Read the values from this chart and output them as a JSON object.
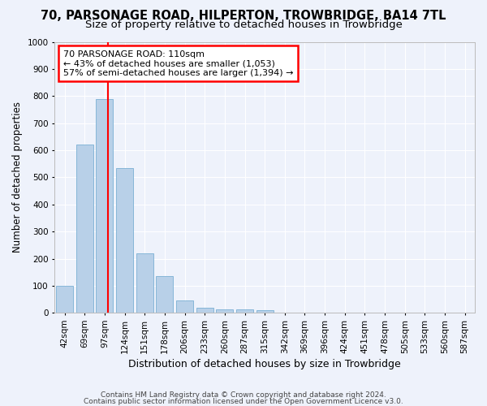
{
  "title": "70, PARSONAGE ROAD, HILPERTON, TROWBRIDGE, BA14 7TL",
  "subtitle": "Size of property relative to detached houses in Trowbridge",
  "xlabel": "Distribution of detached houses by size in Trowbridge",
  "ylabel": "Number of detached properties",
  "categories": [
    "42sqm",
    "69sqm",
    "97sqm",
    "124sqm",
    "151sqm",
    "178sqm",
    "206sqm",
    "233sqm",
    "260sqm",
    "287sqm",
    "315sqm",
    "342sqm",
    "369sqm",
    "396sqm",
    "424sqm",
    "451sqm",
    "478sqm",
    "505sqm",
    "533sqm",
    "560sqm",
    "587sqm"
  ],
  "values": [
    100,
    620,
    790,
    535,
    220,
    135,
    45,
    18,
    12,
    12,
    10,
    0,
    0,
    0,
    0,
    0,
    0,
    0,
    0,
    0,
    0
  ],
  "bar_color": "#b8d0e8",
  "bar_edge_color": "#7aafd4",
  "annotation_text": "70 PARSONAGE ROAD: 110sqm\n← 43% of detached houses are smaller (1,053)\n57% of semi-detached houses are larger (1,394) →",
  "annotation_box_color": "white",
  "annotation_border_color": "red",
  "ylim": [
    0,
    1000
  ],
  "yticks": [
    0,
    100,
    200,
    300,
    400,
    500,
    600,
    700,
    800,
    900,
    1000
  ],
  "footer1": "Contains HM Land Registry data © Crown copyright and database right 2024.",
  "footer2": "Contains public sector information licensed under the Open Government Licence v3.0.",
  "bg_color": "#eef2fb",
  "grid_color": "#ffffff",
  "title_fontsize": 10.5,
  "subtitle_fontsize": 9.5,
  "tick_fontsize": 7.5,
  "ylabel_fontsize": 8.5,
  "xlabel_fontsize": 9
}
